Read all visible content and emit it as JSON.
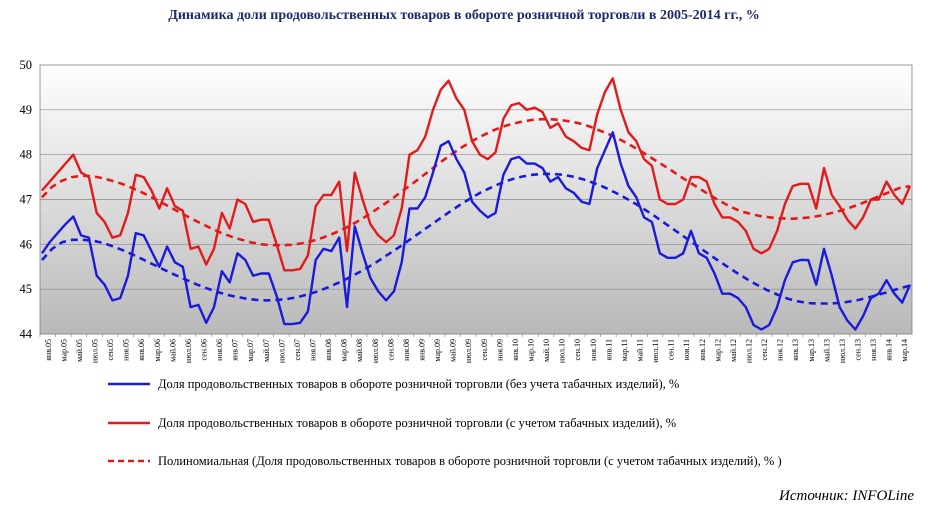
{
  "chart_data": {
    "type": "line",
    "title": "Динамика доли продовольственных товаров в обороте розничной торговли в 2005-2014 гг., %",
    "ylim": [
      44,
      50
    ],
    "yticks": [
      "44",
      "45",
      "46",
      "47",
      "48",
      "49",
      "50"
    ],
    "grid": "horizontal",
    "background": "gradient-grey",
    "legend_position": "bottom",
    "x_labels": [
      "янв.05",
      "мар.05",
      "май.05",
      "июл.05",
      "сен.05",
      "ноя.05",
      "янв.06",
      "мар.06",
      "май.06",
      "июл.06",
      "сен.06",
      "ноя.06",
      "янв.07",
      "мар.07",
      "май.07",
      "июл.07",
      "сен.07",
      "ноя.07",
      "янв.08",
      "мар.08",
      "май.08",
      "июл.08",
      "сен.08",
      "ноя.08",
      "янв.09",
      "мар.09",
      "май.09",
      "июл.09",
      "сен.09",
      "ноя.09",
      "янв.10",
      "мар.10",
      "май.10",
      "июл.10",
      "сен.10",
      "ноя.10",
      "янв.11",
      "мар.11",
      "май.11",
      "июл.11",
      "сен.11",
      "ноя.11",
      "янв.12",
      "мар.12",
      "май.12",
      "июл.12",
      "сен.12",
      "ноя.12",
      "янв.13",
      "мар.13",
      "май.13",
      "июл.13",
      "сен.13",
      "ноя.13",
      "янв.14",
      "мар.14"
    ],
    "series": [
      {
        "name": "Доля продовольственных товаров в обороте розничной торговли (без учета табачных изделий), %",
        "color": "#1a1adb",
        "style": "solid",
        "values": [
          45.8,
          46.05,
          46.25,
          46.45,
          46.62,
          46.2,
          46.15,
          45.3,
          45.1,
          44.75,
          44.8,
          45.3,
          46.25,
          46.2,
          45.85,
          45.5,
          45.95,
          45.6,
          45.5,
          44.6,
          44.65,
          44.25,
          44.6,
          45.4,
          45.15,
          45.8,
          45.65,
          45.3,
          45.35,
          45.35,
          44.85,
          44.22,
          44.22,
          44.25,
          44.5,
          45.65,
          45.9,
          45.85,
          46.15,
          44.6,
          46.4,
          45.8,
          45.25,
          44.95,
          44.75,
          44.95,
          45.6,
          46.8,
          46.8,
          47.05,
          47.6,
          48.2,
          48.3,
          47.9,
          47.6,
          46.95,
          46.75,
          46.6,
          46.7,
          47.55,
          47.9,
          47.95,
          47.8,
          47.8,
          47.7,
          47.4,
          47.5,
          47.25,
          47.15,
          46.95,
          46.9,
          47.7,
          48.1,
          48.5,
          47.8,
          47.3,
          47.05,
          46.6,
          46.5,
          45.8,
          45.7,
          45.7,
          45.8,
          46.3,
          45.8,
          45.7,
          45.35,
          44.9,
          44.9,
          44.8,
          44.6,
          44.2,
          44.1,
          44.2,
          44.6,
          45.2,
          45.6,
          45.65,
          45.65,
          45.1,
          45.9,
          45.3,
          44.6,
          44.3,
          44.1,
          44.4,
          44.8,
          44.9,
          45.2,
          44.9,
          44.7,
          45.1
        ]
      },
      {
        "name": "Доля продовольственных товаров в обороте розничной торговли (с учетом табачных изделий), %",
        "color": "#e31a1a",
        "style": "solid",
        "values": [
          47.2,
          47.4,
          47.6,
          47.8,
          48.0,
          47.6,
          47.5,
          46.7,
          46.5,
          46.15,
          46.2,
          46.7,
          47.55,
          47.5,
          47.2,
          46.8,
          47.25,
          46.85,
          46.75,
          45.9,
          45.95,
          45.55,
          45.9,
          46.7,
          46.35,
          47.0,
          46.9,
          46.5,
          46.55,
          46.55,
          46.0,
          45.42,
          45.42,
          45.45,
          45.75,
          46.85,
          47.1,
          47.1,
          47.4,
          45.85,
          47.6,
          47.0,
          46.45,
          46.2,
          46.05,
          46.2,
          46.8,
          48.0,
          48.1,
          48.4,
          49.0,
          49.45,
          49.65,
          49.25,
          49.0,
          48.3,
          48.0,
          47.9,
          48.05,
          48.8,
          49.1,
          49.15,
          49.0,
          49.05,
          48.95,
          48.6,
          48.7,
          48.4,
          48.3,
          48.15,
          48.1,
          48.9,
          49.4,
          49.7,
          49.0,
          48.5,
          48.3,
          47.9,
          47.75,
          47.0,
          46.9,
          46.9,
          47.0,
          47.5,
          47.5,
          47.4,
          46.9,
          46.6,
          46.6,
          46.5,
          46.3,
          45.9,
          45.8,
          45.9,
          46.3,
          46.9,
          47.3,
          47.35,
          47.35,
          46.8,
          47.7,
          47.1,
          46.85,
          46.55,
          46.35,
          46.6,
          47.0,
          47.0,
          47.4,
          47.1,
          46.9,
          47.3
        ]
      },
      {
        "name": "Полиномиальная (Доля продовольственных товаров в обороте розничной торговли (с учетом табачных изделий), % )",
        "color": "#e31a1a",
        "style": "dashed",
        "values": [
          47.05,
          47.28,
          47.42,
          47.5,
          47.53,
          47.52,
          47.48,
          47.42,
          47.35,
          47.26,
          47.16,
          47.05,
          46.93,
          46.81,
          46.69,
          46.57,
          46.46,
          46.35,
          46.25,
          46.17,
          46.1,
          46.04,
          46.0,
          45.98,
          45.98,
          45.99,
          46.02,
          46.07,
          46.14,
          46.22,
          46.32,
          46.43,
          46.56,
          46.7,
          46.85,
          47.0,
          47.17,
          47.33,
          47.5,
          47.67,
          47.84,
          48.0,
          48.15,
          48.29,
          48.41,
          48.52,
          48.61,
          48.68,
          48.73,
          48.77,
          48.79,
          48.79,
          48.77,
          48.74,
          48.69,
          48.62,
          48.53,
          48.44,
          48.33,
          48.21,
          48.08,
          47.94,
          47.8,
          47.66,
          47.51,
          47.37,
          47.23,
          47.09,
          46.96,
          46.84,
          46.74,
          46.68,
          46.63,
          46.6,
          46.58,
          46.57,
          46.58,
          46.6,
          46.64,
          46.69,
          46.75,
          46.82,
          46.9,
          46.99,
          47.08,
          47.17,
          47.26,
          47.3
        ]
      },
      {
        "name": "",
        "color": "#1a1adb",
        "style": "dashed",
        "values": [
          45.65,
          45.9,
          46.05,
          46.1,
          46.1,
          46.08,
          46.03,
          45.95,
          45.86,
          45.76,
          45.65,
          45.54,
          45.43,
          45.32,
          45.22,
          45.12,
          45.03,
          44.95,
          44.88,
          44.83,
          44.79,
          44.76,
          44.75,
          44.76,
          44.78,
          44.82,
          44.88,
          44.95,
          45.04,
          45.14,
          45.25,
          45.37,
          45.5,
          45.64,
          45.79,
          45.94,
          46.1,
          46.26,
          46.42,
          46.58,
          46.74,
          46.89,
          47.03,
          47.16,
          47.27,
          47.37,
          47.45,
          47.51,
          47.55,
          47.57,
          47.57,
          47.55,
          47.51,
          47.45,
          47.37,
          47.28,
          47.17,
          47.05,
          46.92,
          46.78,
          46.63,
          46.47,
          46.31,
          46.15,
          45.99,
          45.83,
          45.67,
          45.52,
          45.37,
          45.23,
          45.1,
          44.98,
          44.88,
          44.79,
          44.73,
          44.69,
          44.68,
          44.68,
          44.69,
          44.72,
          44.76,
          44.82,
          44.88,
          44.95,
          45.02,
          45.08
        ]
      }
    ]
  },
  "source": "Источник: INFOLine"
}
